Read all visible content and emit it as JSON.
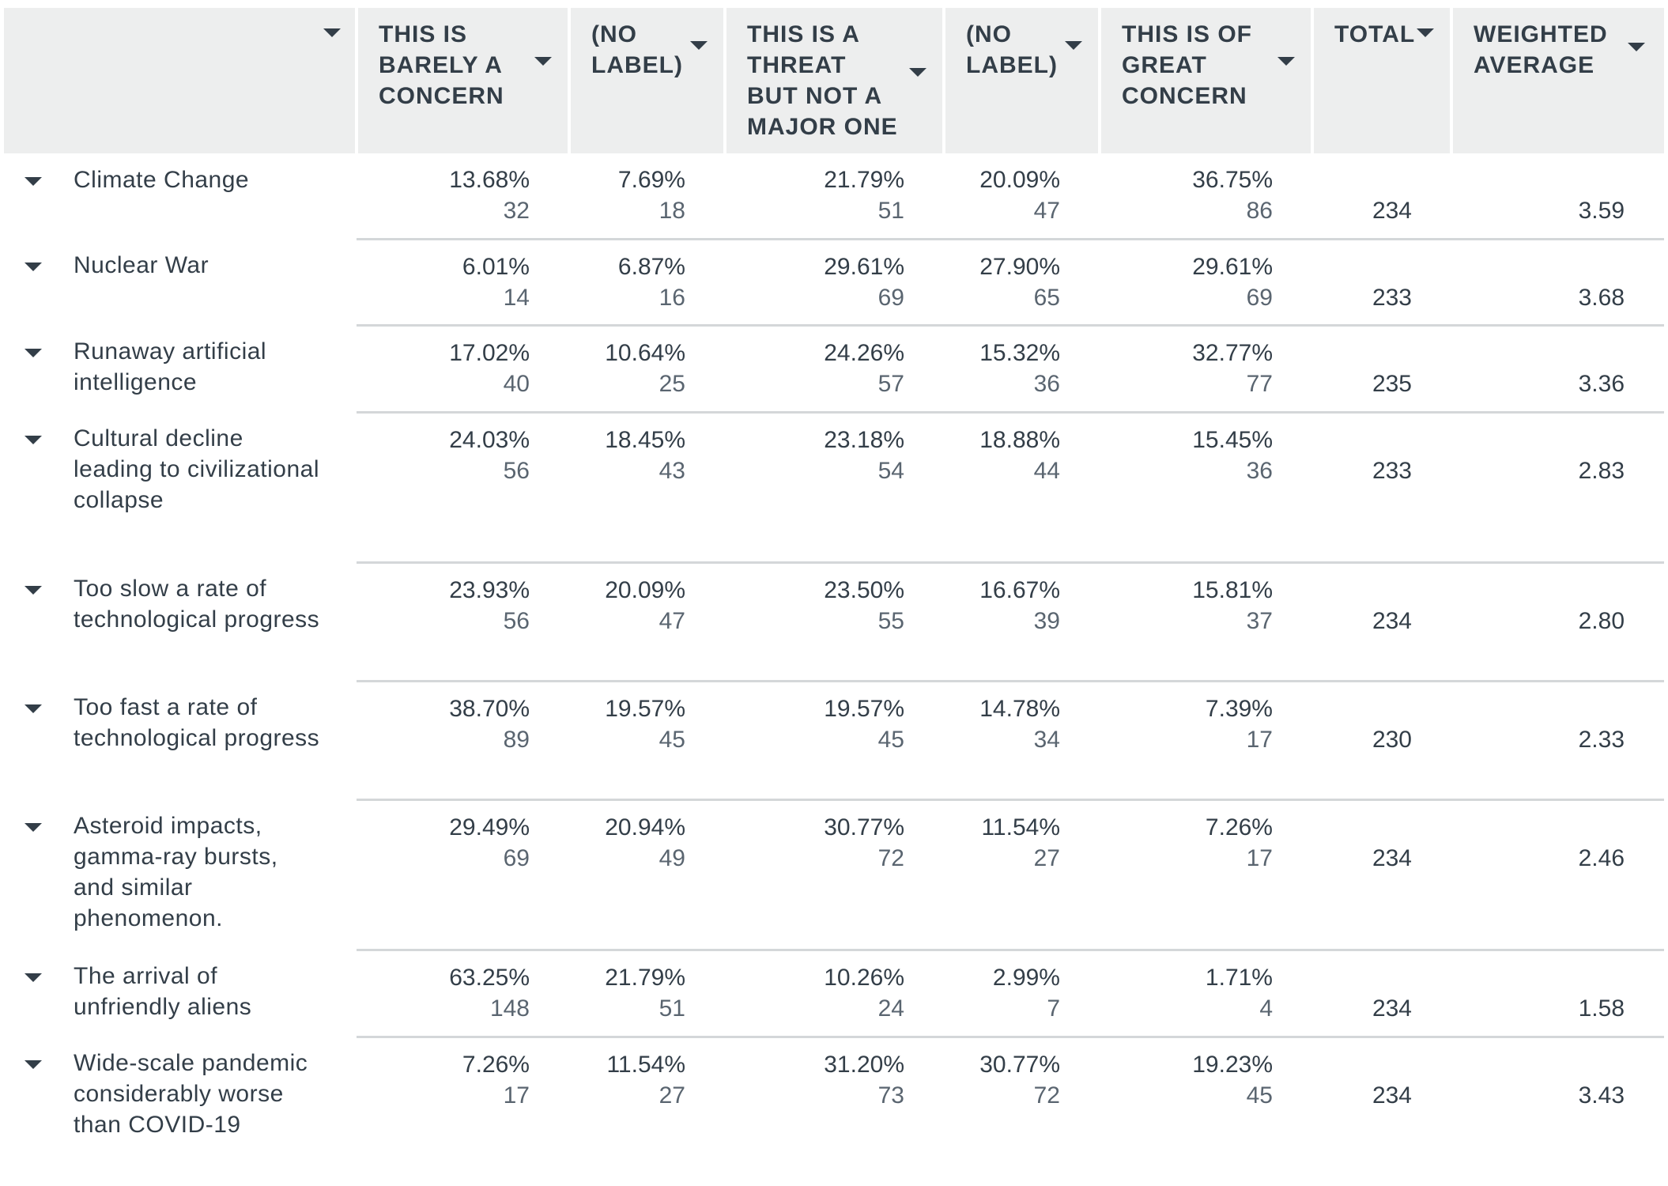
{
  "table": {
    "columns": [
      {
        "key": "label",
        "label": ""
      },
      {
        "key": "barely",
        "label": "THIS IS BARELY A CONCERN"
      },
      {
        "key": "nolabel1",
        "label": "(NO LABEL)"
      },
      {
        "key": "threat_minor",
        "label": "THIS IS A THREAT BUT NOT A MAJOR ONE"
      },
      {
        "key": "nolabel2",
        "label": "(NO LABEL)"
      },
      {
        "key": "great",
        "label": "THIS IS OF GREAT CONCERN"
      },
      {
        "key": "total",
        "label": "TOTAL"
      },
      {
        "key": "wavg",
        "label": "WEIGHTED AVERAGE"
      }
    ],
    "rows": [
      {
        "label": "Climate Change",
        "cells": [
          {
            "pct": "13.68%",
            "count": "32"
          },
          {
            "pct": "7.69%",
            "count": "18"
          },
          {
            "pct": "21.79%",
            "count": "51"
          },
          {
            "pct": "20.09%",
            "count": "47"
          },
          {
            "pct": "36.75%",
            "count": "86"
          }
        ],
        "total": "234",
        "wavg": "3.59"
      },
      {
        "label": "Nuclear War",
        "cells": [
          {
            "pct": "6.01%",
            "count": "14"
          },
          {
            "pct": "6.87%",
            "count": "16"
          },
          {
            "pct": "29.61%",
            "count": "69"
          },
          {
            "pct": "27.90%",
            "count": "65"
          },
          {
            "pct": "29.61%",
            "count": "69"
          }
        ],
        "total": "233",
        "wavg": "3.68"
      },
      {
        "label": "Runaway artificial intelligence",
        "cells": [
          {
            "pct": "17.02%",
            "count": "40"
          },
          {
            "pct": "10.64%",
            "count": "25"
          },
          {
            "pct": "24.26%",
            "count": "57"
          },
          {
            "pct": "15.32%",
            "count": "36"
          },
          {
            "pct": "32.77%",
            "count": "77"
          }
        ],
        "total": "235",
        "wavg": "3.36"
      },
      {
        "label": "Cultural decline leading to civilizational collapse",
        "cells": [
          {
            "pct": "24.03%",
            "count": "56"
          },
          {
            "pct": "18.45%",
            "count": "43"
          },
          {
            "pct": "23.18%",
            "count": "54"
          },
          {
            "pct": "18.88%",
            "count": "44"
          },
          {
            "pct": "15.45%",
            "count": "36"
          }
        ],
        "total": "233",
        "wavg": "2.83"
      },
      {
        "label": "Too slow a rate of technological progress",
        "cells": [
          {
            "pct": "23.93%",
            "count": "56"
          },
          {
            "pct": "20.09%",
            "count": "47"
          },
          {
            "pct": "23.50%",
            "count": "55"
          },
          {
            "pct": "16.67%",
            "count": "39"
          },
          {
            "pct": "15.81%",
            "count": "37"
          }
        ],
        "total": "234",
        "wavg": "2.80"
      },
      {
        "label": "Too fast a rate of technological progress",
        "cells": [
          {
            "pct": "38.70%",
            "count": "89"
          },
          {
            "pct": "19.57%",
            "count": "45"
          },
          {
            "pct": "19.57%",
            "count": "45"
          },
          {
            "pct": "14.78%",
            "count": "34"
          },
          {
            "pct": "7.39%",
            "count": "17"
          }
        ],
        "total": "230",
        "wavg": "2.33"
      },
      {
        "label": "Asteroid impacts, gamma-ray bursts, and similar phenomenon.",
        "cells": [
          {
            "pct": "29.49%",
            "count": "69"
          },
          {
            "pct": "20.94%",
            "count": "49"
          },
          {
            "pct": "30.77%",
            "count": "72"
          },
          {
            "pct": "11.54%",
            "count": "27"
          },
          {
            "pct": "7.26%",
            "count": "17"
          }
        ],
        "total": "234",
        "wavg": "2.46"
      },
      {
        "label": "The arrival of unfriendly aliens",
        "cells": [
          {
            "pct": "63.25%",
            "count": "148"
          },
          {
            "pct": "21.79%",
            "count": "51"
          },
          {
            "pct": "10.26%",
            "count": "24"
          },
          {
            "pct": "2.99%",
            "count": "7"
          },
          {
            "pct": "1.71%",
            "count": "4"
          }
        ],
        "total": "234",
        "wavg": "1.58"
      },
      {
        "label": "Wide-scale pandemic considerably worse than COVID-19",
        "cells": [
          {
            "pct": "7.26%",
            "count": "17"
          },
          {
            "pct": "11.54%",
            "count": "27"
          },
          {
            "pct": "31.20%",
            "count": "73"
          },
          {
            "pct": "30.77%",
            "count": "72"
          },
          {
            "pct": "19.23%",
            "count": "45"
          }
        ],
        "total": "234",
        "wavg": "3.43"
      }
    ]
  },
  "icons": {
    "sort": "caret-down-icon",
    "row_toggle": "caret-down-icon"
  },
  "colors": {
    "header_bg": "#edeeee",
    "text": "#333e48",
    "row_divider": "#d4d7d9"
  }
}
